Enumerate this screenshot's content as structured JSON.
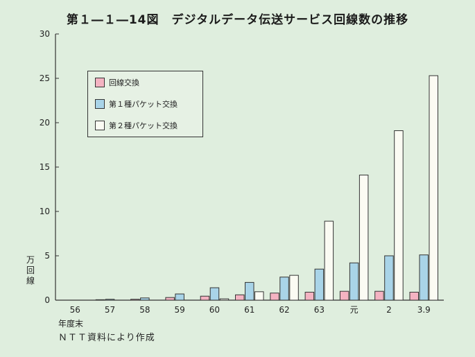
{
  "title": "第１―１―14図　デジタルデータ伝送サービス回線数の推移",
  "chart_data": {
    "type": "bar",
    "categories": [
      "56",
      "57",
      "58",
      "59",
      "60",
      "61",
      "62",
      "63",
      "元",
      "2",
      "3.9"
    ],
    "series": [
      {
        "name": "回線交換",
        "color": "#f4b3c2",
        "values": [
          0.0,
          0.05,
          0.1,
          0.3,
          0.45,
          0.6,
          0.8,
          0.9,
          1.0,
          1.0,
          0.9
        ]
      },
      {
        "name": "第１種パケット交換",
        "color": "#a9d4e8",
        "values": [
          0.0,
          0.1,
          0.25,
          0.7,
          1.4,
          2.0,
          2.6,
          3.5,
          4.2,
          5.0,
          5.1
        ]
      },
      {
        "name": "第２種パケット交換",
        "color": "#fbfbf3",
        "values": [
          0.0,
          0.0,
          0.0,
          0.0,
          0.15,
          0.95,
          2.8,
          8.9,
          14.1,
          19.1,
          25.3
        ]
      }
    ],
    "ylim": [
      0,
      30
    ],
    "yticks": [
      0,
      5,
      10,
      15,
      20,
      25,
      30
    ],
    "ylabel": "万回線",
    "xlabel": "年度末",
    "legend_position": "top-left"
  },
  "source_note": "ＮＴＴ資料により作成"
}
